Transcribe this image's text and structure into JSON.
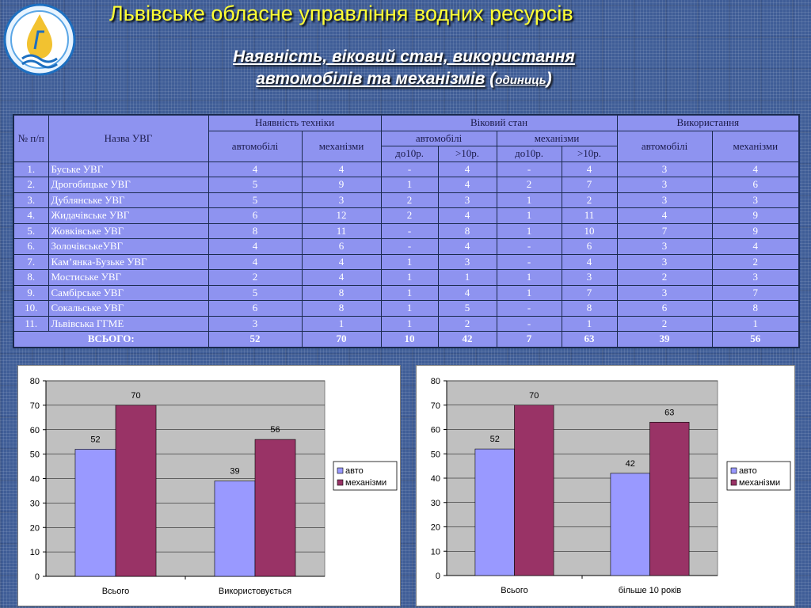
{
  "header": {
    "org_title": "Львівське обласне управління водних ресурсів",
    "subtitle_line1": "Наявність, віковий стан, використання",
    "subtitle_line2": "автомобілів та механізмів",
    "subtitle_unit_open": "(",
    "subtitle_unit": "одиниць",
    "subtitle_unit_close": ")"
  },
  "table": {
    "headers": {
      "num": "№ п/п",
      "name": "Назва УВГ",
      "availability": "Наявність техніки",
      "age": "Віковий стан",
      "usage": "Використання",
      "cars": "автомобілі",
      "mechanisms": "механізми",
      "under10": "до10р.",
      "over10": ">10р."
    },
    "rows": [
      {
        "num": "1.",
        "name": "Буське УВГ",
        "avail_cars": "4",
        "avail_mech": "4",
        "age_cars_u10": "-",
        "age_cars_o10": "4",
        "age_mech_u10": "-",
        "age_mech_o10": "4",
        "use_cars": "3",
        "use_mech": "4"
      },
      {
        "num": "2.",
        "name": "Дрогобицьке УВГ",
        "avail_cars": "5",
        "avail_mech": "9",
        "age_cars_u10": "1",
        "age_cars_o10": "4",
        "age_mech_u10": "2",
        "age_mech_o10": "7",
        "use_cars": "3",
        "use_mech": "6"
      },
      {
        "num": "3.",
        "name": "Дублянське УВГ",
        "avail_cars": "5",
        "avail_mech": "3",
        "age_cars_u10": "2",
        "age_cars_o10": "3",
        "age_mech_u10": "1",
        "age_mech_o10": "2",
        "use_cars": "3",
        "use_mech": "3"
      },
      {
        "num": "4.",
        "name": "Жидачівське УВГ",
        "avail_cars": "6",
        "avail_mech": "12",
        "age_cars_u10": "2",
        "age_cars_o10": "4",
        "age_mech_u10": "1",
        "age_mech_o10": "11",
        "use_cars": "4",
        "use_mech": "9"
      },
      {
        "num": "5.",
        "name": "Жовківське УВГ",
        "avail_cars": "8",
        "avail_mech": "11",
        "age_cars_u10": "-",
        "age_cars_o10": "8",
        "age_mech_u10": "1",
        "age_mech_o10": "10",
        "use_cars": "7",
        "use_mech": "9"
      },
      {
        "num": "6.",
        "name": "ЗолочівськеУВГ",
        "avail_cars": "4",
        "avail_mech": "6",
        "age_cars_u10": "-",
        "age_cars_o10": "4",
        "age_mech_u10": "-",
        "age_mech_o10": "6",
        "use_cars": "3",
        "use_mech": "4"
      },
      {
        "num": "7.",
        "name": "Кам’янка-Бузьке УВГ",
        "avail_cars": "4",
        "avail_mech": "4",
        "age_cars_u10": "1",
        "age_cars_o10": "3",
        "age_mech_u10": "-",
        "age_mech_o10": "4",
        "use_cars": "3",
        "use_mech": "2"
      },
      {
        "num": "8.",
        "name": "Мостиське УВГ",
        "avail_cars": "2",
        "avail_mech": "4",
        "age_cars_u10": "1",
        "age_cars_o10": "1",
        "age_mech_u10": "1",
        "age_mech_o10": "3",
        "use_cars": "2",
        "use_mech": "3"
      },
      {
        "num": "9.",
        "name": "Самбірське УВГ",
        "avail_cars": "5",
        "avail_mech": "8",
        "age_cars_u10": "1",
        "age_cars_o10": "4",
        "age_mech_u10": "1",
        "age_mech_o10": "7",
        "use_cars": "3",
        "use_mech": "7"
      },
      {
        "num": "10.",
        "name": "Сокальське УВГ",
        "avail_cars": "6",
        "avail_mech": "8",
        "age_cars_u10": "1",
        "age_cars_o10": "5",
        "age_mech_u10": "-",
        "age_mech_o10": "8",
        "use_cars": "6",
        "use_mech": "8"
      },
      {
        "num": "11.",
        "name": "Львівська ГГМЕ",
        "avail_cars": "3",
        "avail_mech": "1",
        "age_cars_u10": "1",
        "age_cars_o10": "2",
        "age_mech_u10": "-",
        "age_mech_o10": "1",
        "use_cars": "2",
        "use_mech": "1"
      }
    ],
    "total": {
      "label": "ВСЬОГО:",
      "avail_cars": "52",
      "avail_mech": "70",
      "age_cars_u10": "10",
      "age_cars_o10": "42",
      "age_mech_u10": "7",
      "age_mech_o10": "63",
      "use_cars": "39",
      "use_mech": "56"
    }
  },
  "chart_data": [
    {
      "type": "bar",
      "title": "",
      "xlabel": "",
      "ylabel": "",
      "categories": [
        "Всього",
        "Використовується"
      ],
      "series": [
        {
          "name": "авто",
          "values": [
            52,
            39
          ],
          "color": "#9999ff"
        },
        {
          "name": "механізми",
          "values": [
            70,
            56
          ],
          "color": "#993366"
        }
      ],
      "ylim": [
        0,
        80
      ],
      "yticks": [
        0,
        10,
        20,
        30,
        40,
        50,
        60,
        70,
        80
      ],
      "grid": true,
      "plot_background": "#c0c0c0",
      "legend_position": "right"
    },
    {
      "type": "bar",
      "title": "",
      "xlabel": "",
      "ylabel": "",
      "categories": [
        "Всього",
        "більше 10 років"
      ],
      "series": [
        {
          "name": "авто",
          "values": [
            52,
            42
          ],
          "color": "#9999ff"
        },
        {
          "name": "механізми",
          "values": [
            70,
            63
          ],
          "color": "#993366"
        }
      ],
      "ylim": [
        0,
        80
      ],
      "yticks": [
        0,
        10,
        20,
        30,
        40,
        50,
        60,
        70,
        80
      ],
      "grid": true,
      "plot_background": "#c0c0c0",
      "legend_position": "right"
    }
  ]
}
